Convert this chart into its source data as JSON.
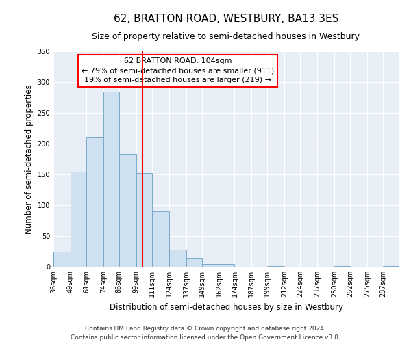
{
  "title": "62, BRATTON ROAD, WESTBURY, BA13 3ES",
  "subtitle": "Size of property relative to semi-detached houses in Westbury",
  "xlabel": "Distribution of semi-detached houses by size in Westbury",
  "ylabel": "Number of semi-detached properties",
  "bin_labels": [
    "36sqm",
    "49sqm",
    "61sqm",
    "74sqm",
    "86sqm",
    "99sqm",
    "111sqm",
    "124sqm",
    "137sqm",
    "149sqm",
    "162sqm",
    "174sqm",
    "187sqm",
    "199sqm",
    "212sqm",
    "224sqm",
    "237sqm",
    "250sqm",
    "262sqm",
    "275sqm",
    "287sqm"
  ],
  "bin_edges": [
    36,
    49,
    61,
    74,
    86,
    99,
    111,
    124,
    137,
    149,
    162,
    174,
    187,
    199,
    212,
    224,
    237,
    250,
    262,
    275,
    287
  ],
  "bar_heights": [
    25,
    155,
    210,
    285,
    183,
    152,
    90,
    28,
    14,
    5,
    5,
    0,
    0,
    1,
    0,
    0,
    0,
    1,
    0,
    0,
    1
  ],
  "bar_color": "#cfe0f0",
  "bar_edgecolor": "#7aaac8",
  "vline_x": 104,
  "vline_color": "red",
  "annotation_title": "62 BRATTON ROAD: 104sqm",
  "annotation_line1": "← 79% of semi-detached houses are smaller (911)",
  "annotation_line2": "19% of semi-detached houses are larger (219) →",
  "annotation_box_edgecolor": "red",
  "ylim": [
    0,
    350
  ],
  "yticks": [
    0,
    50,
    100,
    150,
    200,
    250,
    300,
    350
  ],
  "background_color": "#ffffff",
  "plot_bg_color": "#e8eef5",
  "footer_line1": "Contains HM Land Registry data © Crown copyright and database right 2024.",
  "footer_line2": "Contains public sector information licensed under the Open Government Licence v3.0.",
  "title_fontsize": 11,
  "subtitle_fontsize": 9,
  "axis_label_fontsize": 8.5,
  "tick_fontsize": 7,
  "annotation_fontsize": 8,
  "footer_fontsize": 6.5
}
